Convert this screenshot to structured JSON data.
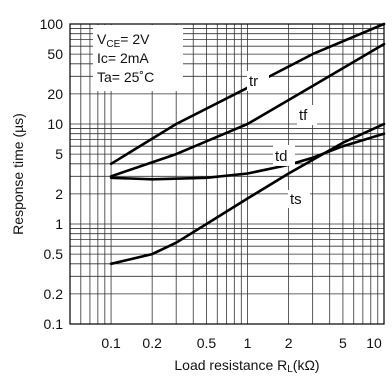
{
  "chart_data": {
    "type": "line",
    "title": "",
    "xlabel": {
      "prefix": "Load resistance R",
      "sub": "L",
      "suffix": "(kΩ)"
    },
    "ylabel": "Response time (µs)",
    "x_scale": "log",
    "y_scale": "log",
    "xlim": [
      0.05,
      10
    ],
    "ylim": [
      0.1,
      100
    ],
    "grid": true,
    "x_tick_labels": [
      {
        "value": 0.1,
        "label": "0.1"
      },
      {
        "value": 0.2,
        "label": "0.2"
      },
      {
        "value": 0.5,
        "label": "0.5"
      },
      {
        "value": 1,
        "label": "1"
      },
      {
        "value": 2,
        "label": "2"
      },
      {
        "value": 5,
        "label": "5"
      },
      {
        "value": 10,
        "label": "10"
      }
    ],
    "y_tick_labels": [
      {
        "value": 0.1,
        "label": "0.1"
      },
      {
        "value": 0.2,
        "label": "0.2"
      },
      {
        "value": 0.5,
        "label": "0.5"
      },
      {
        "value": 1,
        "label": "1"
      },
      {
        "value": 2,
        "label": "2"
      },
      {
        "value": 5,
        "label": "5"
      },
      {
        "value": 10,
        "label": "10"
      },
      {
        "value": 20,
        "label": "20"
      },
      {
        "value": 50,
        "label": "50"
      },
      {
        "value": 100,
        "label": "100"
      }
    ],
    "conditions": [
      {
        "prefix": "V",
        "sub": "CE",
        "suffix": "= 2V"
      },
      {
        "prefix": "Ic= 2mA",
        "sub": "",
        "suffix": ""
      },
      {
        "prefix": "Ta= 25˚C",
        "sub": "",
        "suffix": ""
      }
    ],
    "series": [
      {
        "name": "tr",
        "x": [
          0.1,
          0.3,
          1,
          3,
          10
        ],
        "y": [
          4,
          10,
          23,
          50,
          100
        ]
      },
      {
        "name": "tf",
        "x": [
          0.1,
          0.3,
          1,
          3,
          10
        ],
        "y": [
          3,
          5,
          10,
          24,
          63
        ]
      },
      {
        "name": "td",
        "x": [
          0.1,
          0.2,
          0.5,
          1,
          2,
          3,
          5,
          10
        ],
        "y": [
          2.9,
          2.8,
          2.9,
          3.2,
          3.9,
          4.6,
          6,
          8
        ]
      },
      {
        "name": "ts",
        "x": [
          0.1,
          0.2,
          0.3,
          0.5,
          1,
          2,
          5,
          10
        ],
        "y": [
          0.4,
          0.5,
          0.65,
          1,
          1.8,
          3.2,
          6.5,
          10
        ]
      }
    ]
  }
}
